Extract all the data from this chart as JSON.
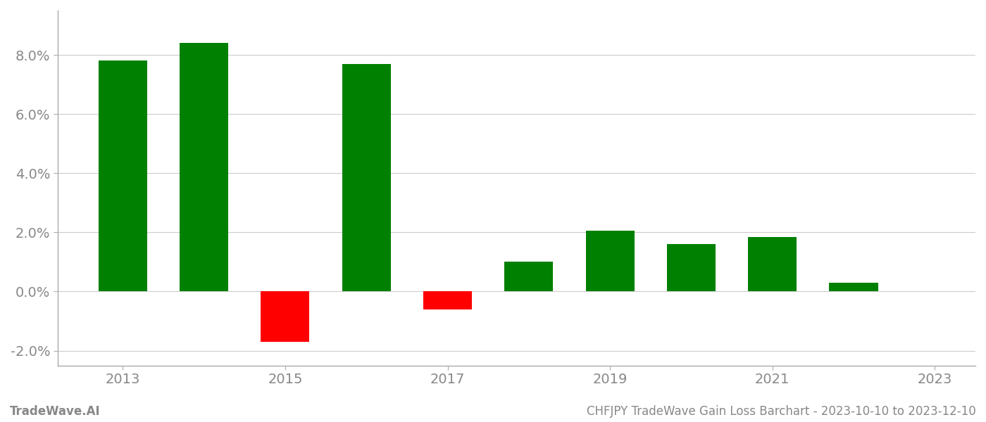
{
  "years": [
    2013,
    2014,
    2015,
    2016,
    2017,
    2018,
    2019,
    2020,
    2021,
    2022
  ],
  "values": [
    0.078,
    0.084,
    -0.017,
    0.077,
    -0.006,
    0.01,
    0.0205,
    0.016,
    0.0185,
    0.003
  ],
  "colors": [
    "#008000",
    "#008000",
    "#ff0000",
    "#008000",
    "#ff0000",
    "#008000",
    "#008000",
    "#008000",
    "#008000",
    "#008000"
  ],
  "ylim": [
    -0.025,
    0.095
  ],
  "yticks": [
    -0.02,
    0.0,
    0.02,
    0.04,
    0.06,
    0.08
  ],
  "xticks": [
    2013,
    2015,
    2017,
    2019,
    2021,
    2023
  ],
  "footer_left": "TradeWave.AI",
  "footer_right": "CHFJPY TradeWave Gain Loss Barchart - 2023-10-10 to 2023-12-10",
  "background_color": "#ffffff",
  "bar_width": 0.6,
  "grid_color": "#cccccc",
  "axis_color": "#aaaaaa",
  "tick_label_color": "#888888",
  "footer_fontsize": 12,
  "tick_fontsize": 14
}
